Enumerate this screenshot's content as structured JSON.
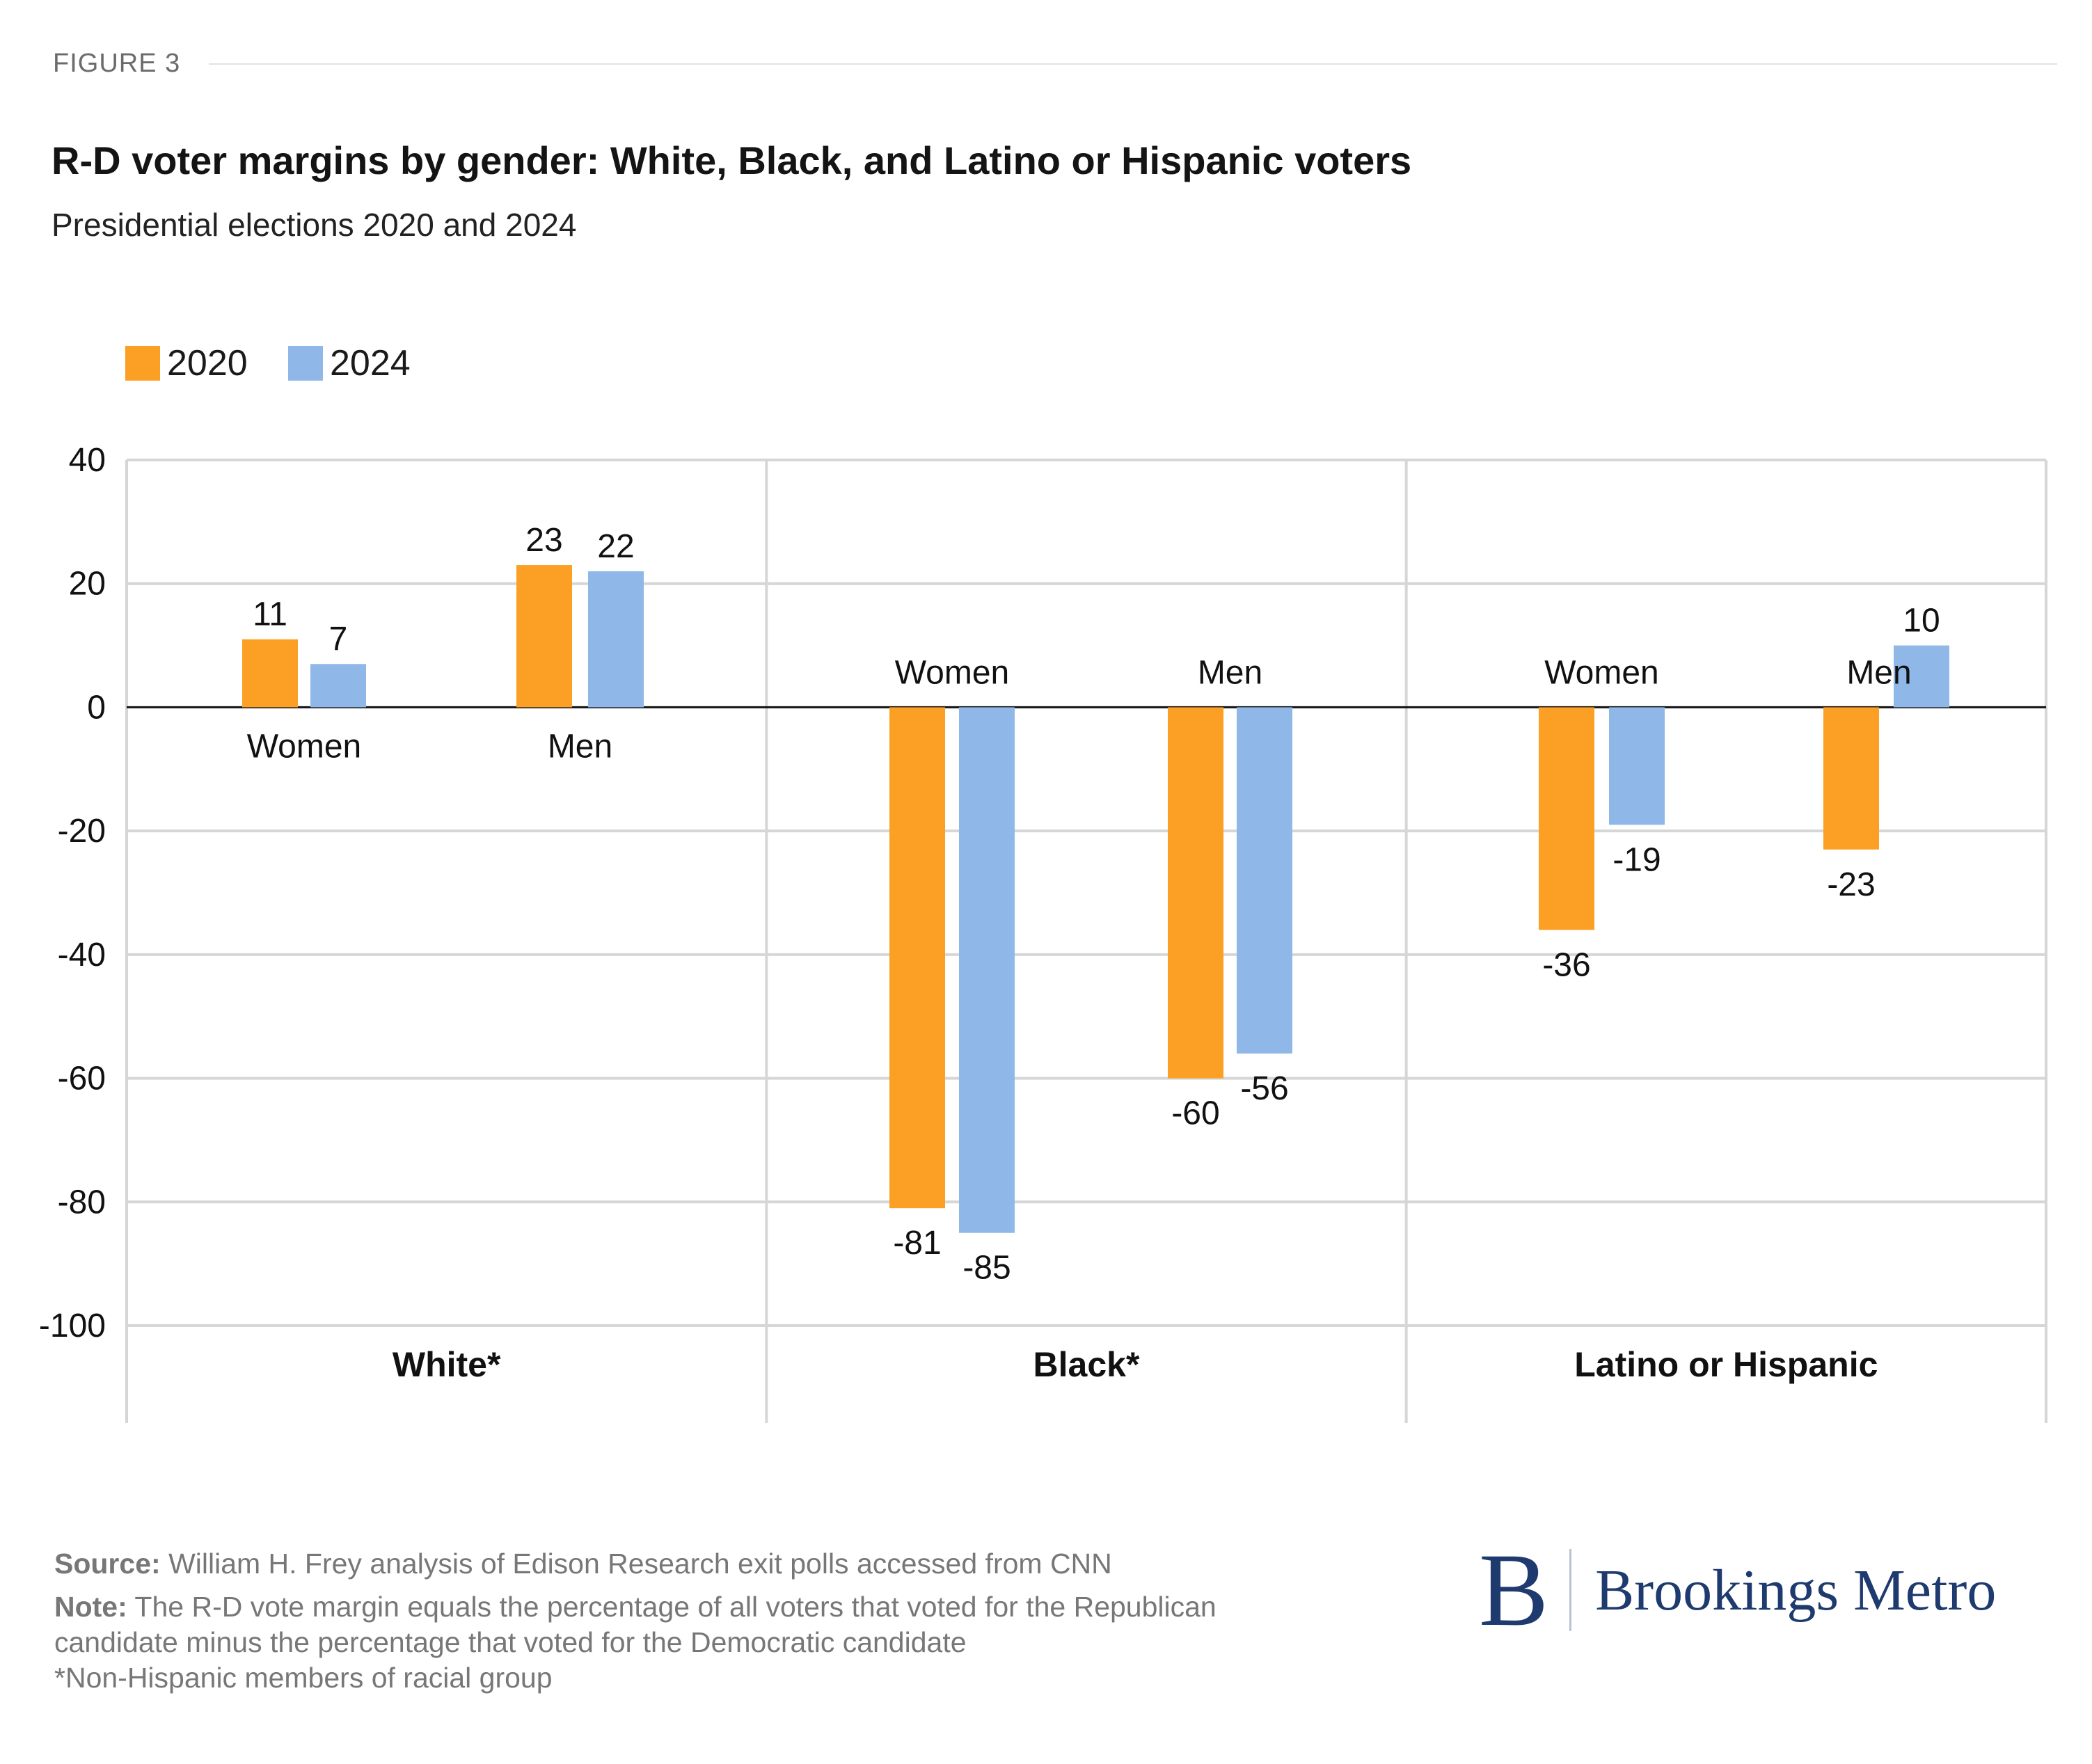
{
  "figure_label": "FIGURE 3",
  "title": "R-D voter margins by gender: White, Black, and Latino or Hispanic voters",
  "subtitle": "Presidential elections 2020 and 2024",
  "colors": {
    "series_2020": "#FBA024",
    "series_2024": "#8FB8E8",
    "grid": "#d6d6d6",
    "axis": "#111111"
  },
  "chart_data": {
    "type": "bar",
    "title": "R-D voter margins by gender: White, Black, and Latino or Hispanic voters",
    "subtitle": "Presidential elections 2020 and 2024",
    "ylim": [
      -100,
      40
    ],
    "yticks": [
      "40",
      "20",
      "0",
      "-20",
      "-40",
      "-60",
      "-80",
      "-100"
    ],
    "ytick_values": [
      40,
      20,
      0,
      -20,
      -40,
      -60,
      -80,
      -100
    ],
    "grid": true,
    "legend": "top-left",
    "groups": [
      "White*",
      "Black*",
      "Latino or Hispanic"
    ],
    "subcategories": [
      "Women",
      "Men"
    ],
    "categories": [
      "White* Women",
      "White* Men",
      "Black* Women",
      "Black* Men",
      "Latino or Hispanic Women",
      "Latino or Hispanic Men"
    ],
    "series": [
      {
        "name": "2020",
        "values": [
          11,
          23,
          -81,
          -60,
          -36,
          -23
        ],
        "labels": [
          "11",
          "23",
          "-81",
          "-60",
          "-36",
          "-23"
        ]
      },
      {
        "name": "2024",
        "values": [
          7,
          22,
          -85,
          -56,
          -19,
          10
        ],
        "labels": [
          "7",
          "22",
          "-85",
          "-56",
          "-19",
          "10"
        ]
      }
    ]
  },
  "footer": {
    "source_label": "Source:",
    "source_text": "William H. Frey analysis of Edison Research exit polls accessed from CNN",
    "note_label": "Note:",
    "note_line1": "The R-D vote margin equals the percentage of all voters that voted for the Republican",
    "note_line2": "candidate minus the percentage that voted for the Democratic candidate",
    "note_line3": "*Non-Hispanic members of racial group"
  },
  "logo": {
    "mark": "B",
    "text": "Brookings Metro"
  }
}
